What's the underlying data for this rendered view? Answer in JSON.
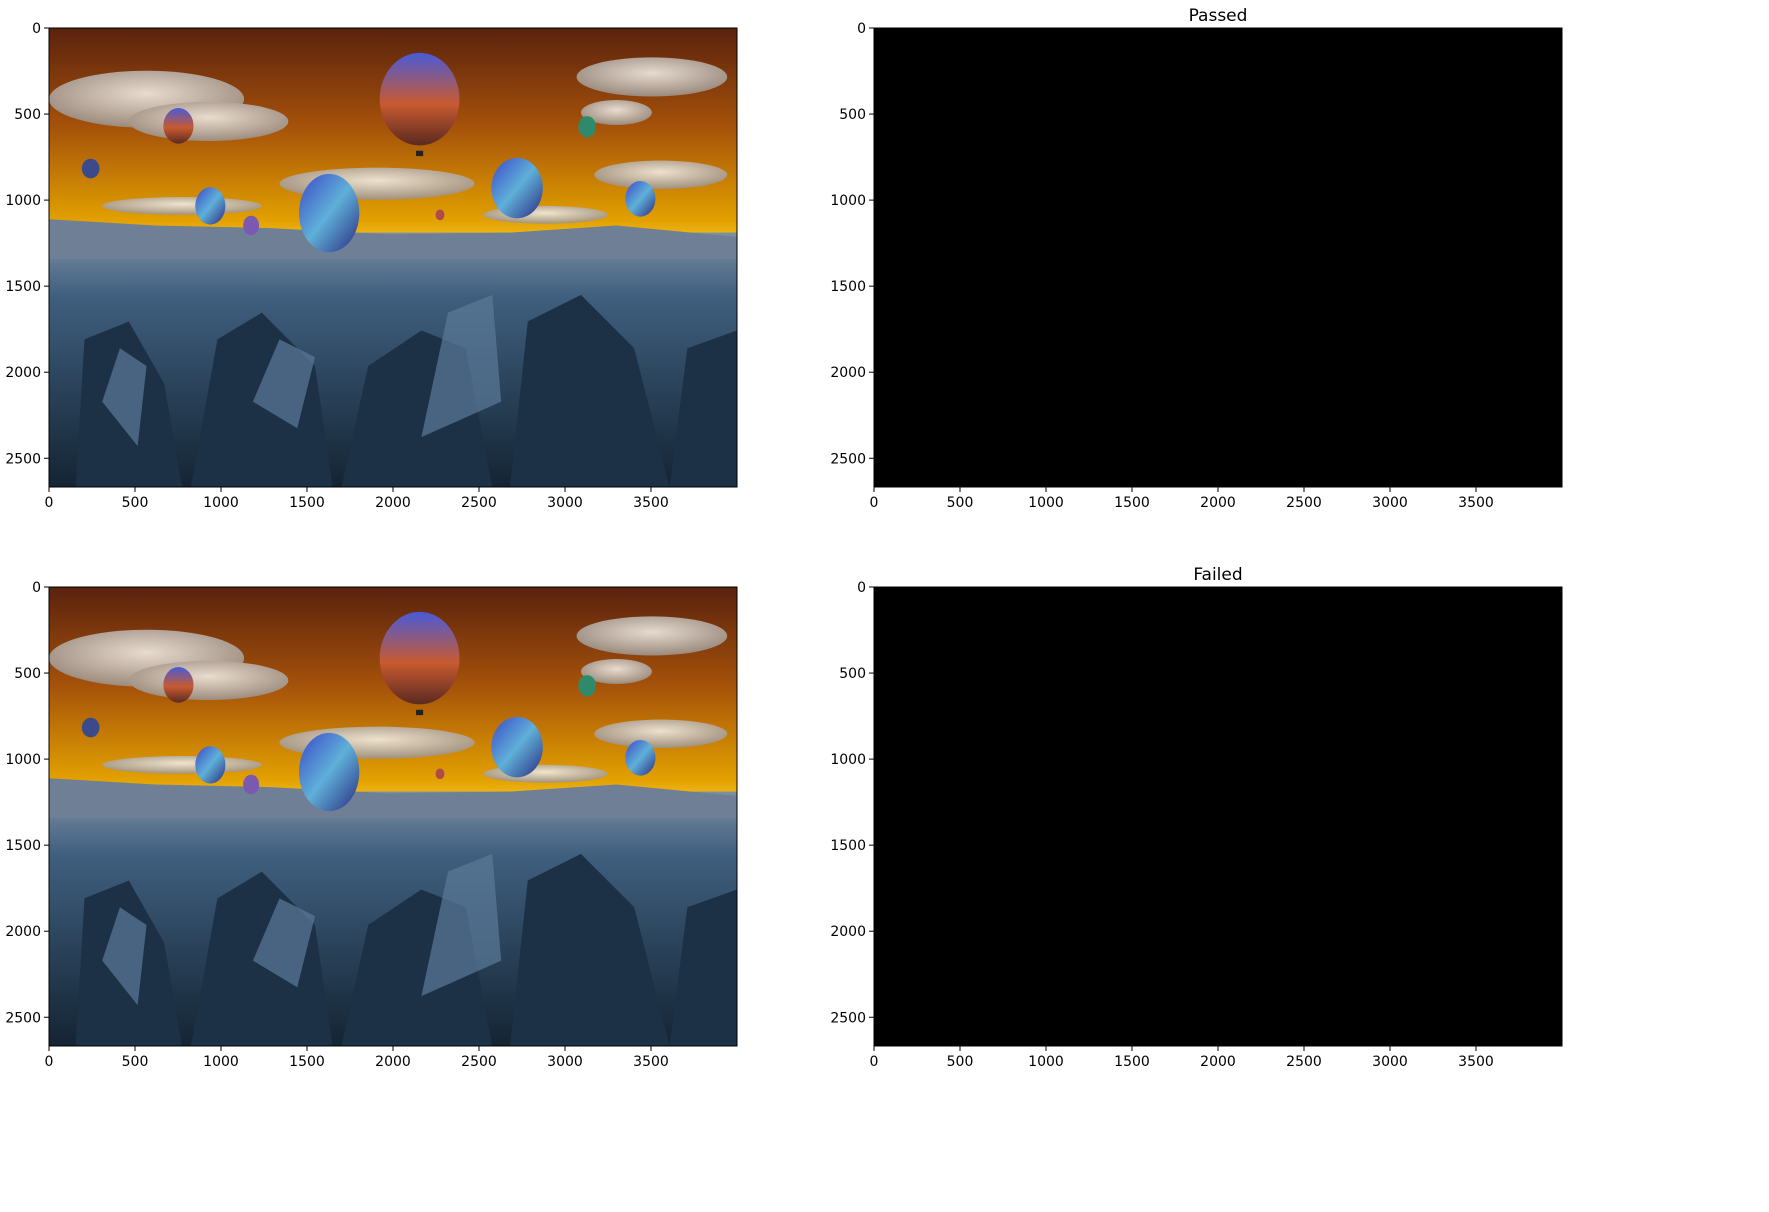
{
  "chart_data": [
    {
      "type": "image",
      "title": "",
      "image": "balloons-sky-dark",
      "xlim": [
        0,
        4000
      ],
      "ylim": [
        2667,
        0
      ],
      "xticks": [
        0,
        500,
        1000,
        1500,
        2000,
        2500,
        3000,
        3500
      ],
      "yticks": [
        0,
        500,
        1000,
        1500,
        2000,
        2500
      ]
    },
    {
      "type": "image",
      "title": "Passed",
      "image": "black",
      "xlim": [
        0,
        4000
      ],
      "ylim": [
        2667,
        0
      ],
      "xticks": [
        0,
        500,
        1000,
        1500,
        2000,
        2500,
        3000,
        3500
      ],
      "yticks": [
        0,
        500,
        1000,
        1500,
        2000,
        2500
      ]
    },
    {
      "type": "image",
      "title": "",
      "image": "balloons-sky-dark",
      "xlim": [
        0,
        4000
      ],
      "ylim": [
        2667,
        0
      ],
      "xticks": [
        0,
        500,
        1000,
        1500,
        2000,
        2500,
        3000,
        3500
      ],
      "yticks": [
        0,
        500,
        1000,
        1500,
        2000,
        2500
      ]
    },
    {
      "type": "image",
      "title": "Failed",
      "image": "black",
      "xlim": [
        0,
        4000
      ],
      "ylim": [
        2667,
        0
      ],
      "xticks": [
        0,
        500,
        1000,
        1500,
        2000,
        2500,
        3000,
        3500
      ],
      "yticks": [
        0,
        500,
        1000,
        1500,
        2000,
        2500
      ]
    }
  ],
  "colors": {
    "axis": "#000000",
    "black_image": "#000000",
    "sky_top": "#6b2a0e",
    "sky_horizon": "#e8a100",
    "ground": "#2f4a63"
  }
}
